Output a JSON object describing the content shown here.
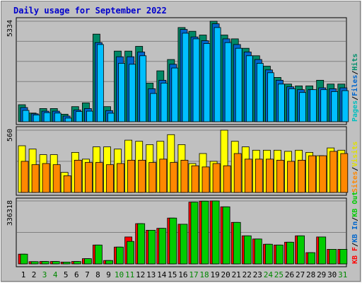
{
  "chart_data": {
    "type": "bar",
    "title": "Daily usage for September 2022",
    "categories": [
      "1",
      "2",
      "3",
      "4",
      "5",
      "6",
      "7",
      "8",
      "9",
      "10",
      "11",
      "12",
      "13",
      "14",
      "15",
      "16",
      "17",
      "18",
      "19",
      "20",
      "21",
      "22",
      "23",
      "24",
      "25",
      "26",
      "27",
      "28",
      "29",
      "30",
      "31"
    ],
    "weekend_days": [
      "3",
      "4",
      "10",
      "11",
      "17",
      "18",
      "24",
      "25",
      "31"
    ],
    "panels": [
      {
        "name": "hits",
        "max_label": "5334",
        "ylim": [
          0,
          5334
        ],
        "axis_labels": [
          {
            "text": "Pages",
            "color": "#00bfbf"
          },
          {
            "text": "Files",
            "color": "#0066cc"
          },
          {
            "text": "Hits",
            "color": "#008f6b"
          }
        ],
        "series": [
          {
            "name": "Hits",
            "color": "#008866",
            "values": [
              900,
              460,
              700,
              700,
              400,
              800,
              1000,
              4650,
              800,
              3750,
              3750,
              4000,
              2050,
              2700,
              3300,
              5000,
              4800,
              4600,
              5334,
              4600,
              4400,
              3900,
              3500,
              2950,
              2350,
              2000,
              1900,
              1900,
              2200,
              2000,
              2000
            ]
          },
          {
            "name": "Files",
            "color": "#0066cc",
            "values": [
              750,
              420,
              560,
              560,
              300,
              620,
              700,
              4200,
              590,
              3450,
              3450,
              3700,
              1750,
              2200,
              3050,
              4900,
              4500,
              4300,
              5200,
              4400,
              4100,
              3700,
              3300,
              2750,
              2200,
              1850,
              1700,
              1700,
              1800,
              1750,
              1800
            ]
          },
          {
            "name": "Pages",
            "color": "#00bfff",
            "values": [
              600,
              360,
              480,
              460,
              190,
              540,
              560,
              4100,
              450,
              3100,
              3050,
              3500,
              1500,
              2050,
              2850,
              4700,
              4400,
              4150,
              5000,
              4200,
              3900,
              3500,
              3100,
              2600,
              2000,
              1750,
              1550,
              1700,
              1700,
              1600,
              1650
            ]
          }
        ]
      },
      {
        "name": "visits",
        "max_label": "560",
        "ylim": [
          0,
          560
        ],
        "axis_labels": [
          {
            "text": "Sites",
            "color": "#ff8800"
          },
          {
            "text": "Visits",
            "color": "#e0e000"
          }
        ],
        "series": [
          {
            "name": "Visits",
            "color": "#ffff00",
            "values": [
              420,
              390,
              340,
              340,
              180,
              360,
              300,
              410,
              410,
              390,
              470,
              460,
              430,
              460,
              520,
              430,
              260,
              350,
              280,
              560,
              460,
              410,
              380,
              380,
              380,
              370,
              380,
              360,
              330,
              400,
              380
            ]
          },
          {
            "name": "Sites",
            "color": "#ff8800",
            "values": [
              280,
              250,
              260,
              250,
              150,
              290,
              270,
              270,
              250,
              260,
              290,
              290,
              270,
              300,
              270,
              290,
              240,
              230,
              260,
              240,
              350,
              300,
              300,
              300,
              290,
              280,
              290,
              330,
              330,
              370,
              350
            ]
          }
        ]
      },
      {
        "name": "kbytes",
        "max_label": "336318",
        "ylim": [
          0,
          336318
        ],
        "axis_labels": [
          {
            "text": "KB F",
            "color": "#ff0000"
          },
          {
            "text": "KB In",
            "color": "#0066cc"
          },
          {
            "text": "KB Out",
            "color": "#00cc00"
          }
        ],
        "series": [
          {
            "name": "KB F",
            "color": "#ff0000",
            "values": [
              52000,
              12000,
              13000,
              13000,
              10000,
              13000,
              28000,
              101000,
              18000,
              90000,
              144000,
              215000,
              180000,
              190000,
              245000,
              212000,
              330000,
              335000,
              336318,
              305000,
              222000,
              150000,
              133000,
              105000,
              101000,
              116000,
              150000,
              60000,
              144000,
              78000,
              78000
            ]
          },
          {
            "name": "KB Out",
            "color": "#00cc00",
            "values": [
              52000,
              12000,
              13000,
              13000,
              10000,
              13000,
              28000,
              101000,
              18000,
              90000,
              120000,
              215000,
              180000,
              190000,
              245000,
              212000,
              330000,
              335000,
              336318,
              305000,
              222000,
              150000,
              133000,
              105000,
              101000,
              116000,
              150000,
              60000,
              144000,
              78000,
              78000
            ]
          }
        ]
      }
    ]
  }
}
